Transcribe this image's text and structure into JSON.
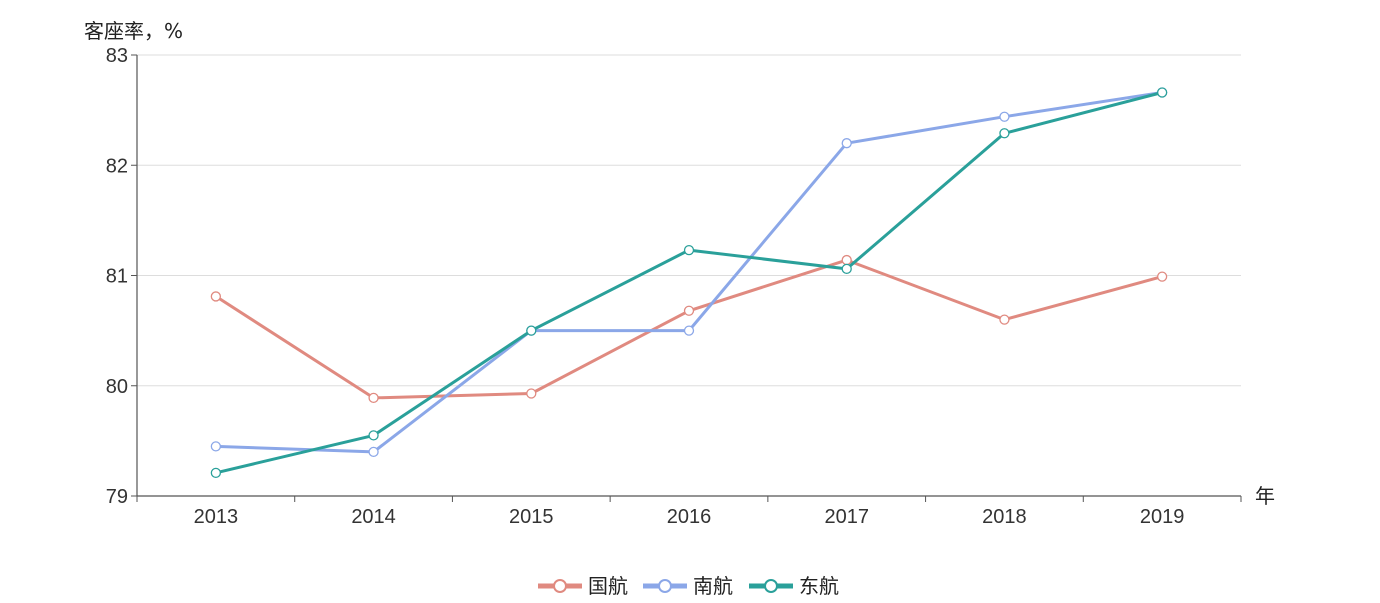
{
  "chart_data": {
    "type": "line",
    "title": "",
    "xlabel": "年",
    "ylabel": "客座率，%",
    "categories": [
      "2013",
      "2014",
      "2015",
      "2016",
      "2017",
      "2018",
      "2019"
    ],
    "ylim": [
      79,
      83
    ],
    "yticks": [
      "79",
      "80",
      "81",
      "82",
      "83"
    ],
    "grid": true,
    "legend_position": "bottom-center",
    "series": [
      {
        "name": "国航",
        "color": "#e08a80",
        "values": [
          80.81,
          79.89,
          79.93,
          80.68,
          81.14,
          80.6,
          80.99
        ]
      },
      {
        "name": "南航",
        "color": "#8ba7e8",
        "values": [
          79.45,
          79.4,
          80.5,
          80.5,
          82.2,
          82.44,
          82.66
        ]
      },
      {
        "name": "东航",
        "color": "#2aa09a",
        "values": [
          79.21,
          79.55,
          80.5,
          81.23,
          81.06,
          82.29,
          82.66
        ]
      }
    ]
  }
}
